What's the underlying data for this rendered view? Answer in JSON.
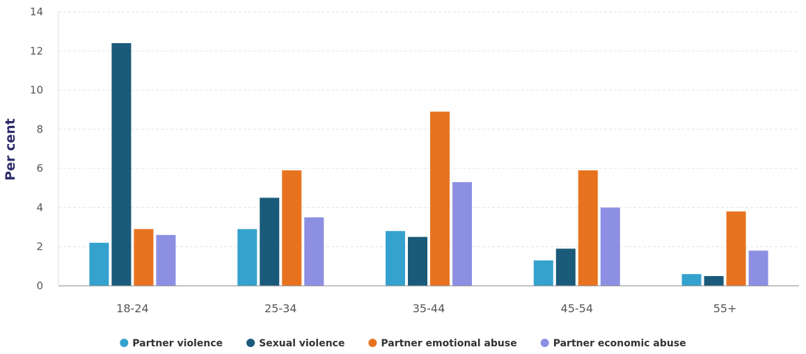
{
  "chart_data": {
    "type": "bar",
    "categories": [
      "18-24",
      "25-34",
      "35-44",
      "45-54",
      "55+"
    ],
    "series": [
      {
        "name": "Partner violence",
        "color": "#35a2ce",
        "values": [
          2.2,
          2.9,
          2.8,
          1.3,
          0.6
        ]
      },
      {
        "name": "Sexual violence",
        "color": "#1a5a7a",
        "values": [
          12.4,
          4.5,
          2.5,
          1.9,
          0.5
        ]
      },
      {
        "name": "Partner emotional abuse",
        "color": "#e8731f",
        "values": [
          2.9,
          5.9,
          8.9,
          5.9,
          3.8
        ]
      },
      {
        "name": "Partner economic abuse",
        "color": "#8c8fe2",
        "values": [
          2.6,
          3.5,
          5.3,
          4.0,
          1.8
        ]
      }
    ],
    "title": "",
    "xlabel": "",
    "ylabel": "Per cent",
    "ylim": [
      0,
      14
    ],
    "yticks": [
      0,
      2,
      4,
      6,
      8,
      10,
      12,
      14
    ],
    "grid": true,
    "legend_position": "bottom"
  }
}
